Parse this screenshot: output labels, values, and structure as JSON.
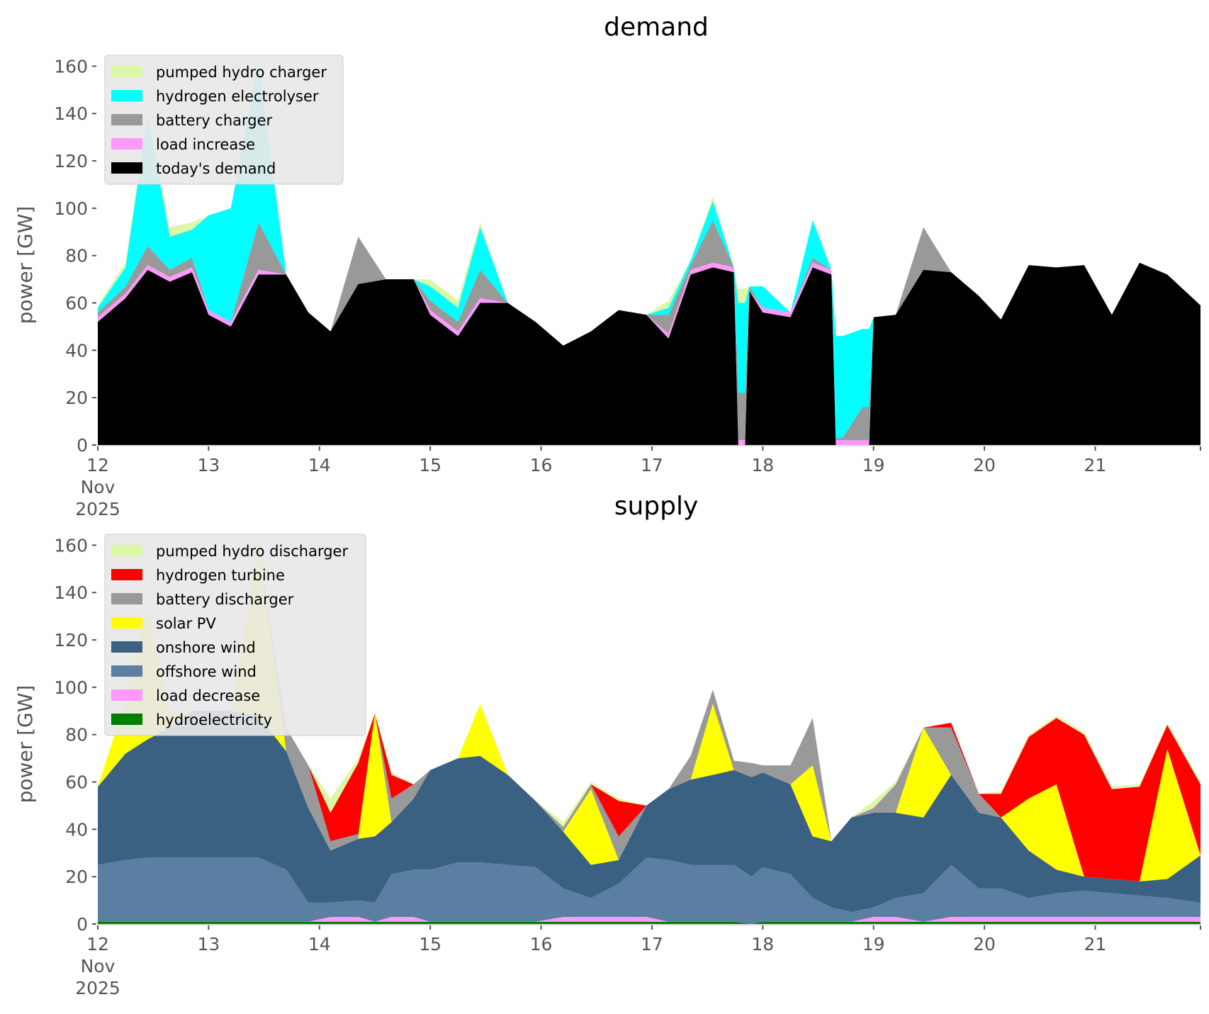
{
  "chart_data": [
    {
      "type": "area",
      "title": "demand",
      "xlabel": "",
      "ylabel": "power [GW]",
      "ylim": [
        0,
        170
      ],
      "xlim": [
        12,
        21.95
      ],
      "x_ticks": [
        {
          "value": 12,
          "label": "12",
          "sub": [
            "Nov",
            "2025"
          ]
        },
        {
          "value": 13,
          "label": "13"
        },
        {
          "value": 14,
          "label": "14"
        },
        {
          "value": 15,
          "label": "15"
        },
        {
          "value": 16,
          "label": "16"
        },
        {
          "value": 17,
          "label": "17"
        },
        {
          "value": 18,
          "label": "18"
        },
        {
          "value": 19,
          "label": "19"
        },
        {
          "value": 20,
          "label": "20"
        },
        {
          "value": 21,
          "label": "21"
        }
      ],
      "y_ticks": [
        0,
        20,
        40,
        60,
        80,
        100,
        120,
        140,
        160
      ],
      "legend_position": "top-left",
      "x": [
        12.0,
        12.25,
        12.45,
        12.65,
        12.85,
        13.0,
        13.2,
        13.45,
        13.7,
        13.9,
        14.1,
        14.35,
        14.6,
        14.85,
        15.0,
        15.25,
        15.45,
        15.7,
        15.95,
        16.2,
        16.45,
        16.7,
        16.95,
        17.15,
        17.35,
        17.55,
        17.74,
        17.78,
        17.84,
        17.88,
        18.0,
        18.25,
        18.45,
        18.62,
        18.66,
        18.72,
        18.9,
        18.96,
        19.0,
        19.2,
        19.45,
        19.7,
        19.95,
        20.15,
        20.4,
        20.65,
        20.9,
        21.15,
        21.4,
        21.65,
        21.95
      ],
      "series": [
        {
          "name": "today's demand",
          "color": "#000000",
          "values": [
            52,
            62,
            74,
            69,
            73,
            55,
            50,
            72,
            72,
            56,
            48,
            68,
            70,
            70,
            55,
            46,
            60,
            60,
            52,
            42,
            48,
            57,
            55,
            45,
            72,
            75,
            73,
            0,
            0,
            65,
            56,
            54,
            75,
            72,
            0,
            0,
            0,
            0,
            54,
            55,
            74,
            73,
            63,
            53,
            76,
            75,
            76,
            55,
            77,
            72,
            59
          ]
        },
        {
          "name": "load increase",
          "color": "#ff99ff",
          "values": [
            2,
            2,
            2,
            2,
            2,
            2,
            2,
            2,
            0,
            0,
            0,
            0,
            0,
            0,
            2,
            2,
            2,
            0,
            0,
            0,
            0,
            0,
            0,
            2,
            2,
            2,
            2,
            2,
            2,
            0,
            2,
            2,
            2,
            2,
            2,
            2,
            2,
            2,
            0,
            0,
            0,
            0,
            0,
            0,
            0,
            0,
            0,
            0,
            0,
            0,
            0
          ]
        },
        {
          "name": "battery charger",
          "color": "#999999",
          "values": [
            2,
            3,
            8,
            3,
            4,
            0,
            0,
            20,
            0,
            0,
            0,
            20,
            0,
            0,
            4,
            4,
            12,
            0,
            0,
            0,
            0,
            0,
            0,
            8,
            2,
            18,
            0,
            20,
            20,
            2,
            0,
            0,
            2,
            0,
            1,
            1,
            14,
            14,
            0,
            0,
            18,
            0,
            0,
            0,
            0,
            0,
            0,
            0,
            0,
            0,
            0
          ]
        },
        {
          "name": "hydrogen electrolyser",
          "color": "#00ffff",
          "values": [
            2,
            8,
            55,
            14,
            12,
            40,
            48,
            68,
            0,
            0,
            0,
            0,
            0,
            0,
            6,
            6,
            18,
            0,
            0,
            0,
            0,
            0,
            0,
            3,
            2,
            8,
            0,
            38,
            38,
            0,
            9,
            0,
            16,
            0,
            43,
            43,
            33,
            33,
            0,
            0,
            0,
            0,
            0,
            0,
            0,
            0,
            0,
            0,
            0,
            0,
            0
          ]
        },
        {
          "name": "pumped hydro charger",
          "color": "#ddf7a6",
          "values": [
            1,
            2,
            2,
            4,
            3,
            0,
            0,
            0,
            0,
            0,
            0,
            0,
            0,
            0,
            3,
            3,
            2,
            0,
            0,
            0,
            0,
            0,
            0,
            3,
            0,
            2,
            0,
            6,
            6,
            0,
            0,
            0,
            0,
            0,
            0,
            0,
            0,
            0,
            0,
            0,
            0,
            0,
            0,
            0,
            0,
            0,
            0,
            0,
            0,
            0,
            0
          ]
        }
      ]
    },
    {
      "type": "area",
      "title": "supply",
      "xlabel": "",
      "ylabel": "power [GW]",
      "ylim": [
        0,
        170
      ],
      "xlim": [
        12,
        21.95
      ],
      "x_ticks": [
        {
          "value": 12,
          "label": "12",
          "sub": [
            "Nov",
            "2025"
          ]
        },
        {
          "value": 13,
          "label": "13"
        },
        {
          "value": 14,
          "label": "14"
        },
        {
          "value": 15,
          "label": "15"
        },
        {
          "value": 16,
          "label": "16"
        },
        {
          "value": 17,
          "label": "17"
        },
        {
          "value": 18,
          "label": "18"
        },
        {
          "value": 19,
          "label": "19"
        },
        {
          "value": 20,
          "label": "20"
        },
        {
          "value": 21,
          "label": "21"
        }
      ],
      "y_ticks": [
        0,
        20,
        40,
        60,
        80,
        100,
        120,
        140,
        160
      ],
      "legend_position": "top-left",
      "x": [
        12.0,
        12.25,
        12.45,
        12.65,
        12.85,
        13.0,
        13.2,
        13.45,
        13.7,
        13.9,
        14.1,
        14.35,
        14.5,
        14.65,
        14.85,
        15.0,
        15.25,
        15.45,
        15.7,
        15.95,
        16.2,
        16.45,
        16.7,
        16.95,
        17.15,
        17.35,
        17.55,
        17.74,
        17.9,
        18.0,
        18.25,
        18.45,
        18.62,
        18.8,
        19.0,
        19.2,
        19.45,
        19.7,
        19.95,
        20.15,
        20.4,
        20.65,
        20.9,
        21.15,
        21.4,
        21.65,
        21.95
      ],
      "series": [
        {
          "name": "hydroelectricity",
          "color": "#008000",
          "values": [
            1,
            1,
            1,
            1,
            1,
            1,
            1,
            1,
            1,
            1,
            1,
            1,
            1,
            1,
            1,
            1,
            1,
            1,
            1,
            1,
            1,
            1,
            1,
            1,
            1,
            1,
            1,
            1,
            0,
            1,
            1,
            1,
            1,
            1,
            1,
            1,
            1,
            1,
            1,
            1,
            1,
            1,
            1,
            1,
            1,
            1,
            1
          ]
        },
        {
          "name": "load decrease",
          "color": "#ff99ff",
          "values": [
            0,
            0,
            0,
            0,
            0,
            0,
            0,
            0,
            0,
            0,
            2,
            2,
            0,
            2,
            2,
            0,
            0,
            0,
            0,
            0,
            2,
            2,
            2,
            2,
            0,
            0,
            0,
            0,
            0,
            0,
            0,
            0,
            0,
            0,
            2,
            2,
            0,
            2,
            2,
            2,
            2,
            2,
            2,
            2,
            2,
            2,
            2
          ]
        },
        {
          "name": "offshore wind",
          "color": "#5b7fa3",
          "values": [
            24,
            26,
            27,
            27,
            27,
            27,
            27,
            27,
            22,
            8,
            6,
            7,
            8,
            18,
            20,
            22,
            25,
            25,
            24,
            23,
            12,
            8,
            14,
            25,
            26,
            24,
            24,
            24,
            20,
            23,
            20,
            10,
            6,
            4,
            4,
            8,
            12,
            22,
            12,
            12,
            8,
            10,
            11,
            10,
            9,
            8,
            6
          ]
        },
        {
          "name": "onshore wind",
          "color": "#3b6182",
          "values": [
            33,
            45,
            50,
            55,
            62,
            62,
            62,
            60,
            50,
            40,
            22,
            26,
            28,
            22,
            30,
            42,
            44,
            45,
            38,
            28,
            24,
            14,
            10,
            22,
            30,
            36,
            38,
            40,
            42,
            40,
            38,
            26,
            28,
            40,
            40,
            36,
            32,
            38,
            32,
            30,
            20,
            10,
            6,
            6,
            6,
            8,
            20
          ]
        },
        {
          "name": "solar PV",
          "color": "#ffff00",
          "values": [
            0,
            22,
            55,
            6,
            0,
            0,
            0,
            72,
            0,
            0,
            0,
            0,
            52,
            0,
            0,
            0,
            0,
            22,
            0,
            0,
            0,
            32,
            0,
            0,
            0,
            0,
            30,
            0,
            0,
            0,
            0,
            30,
            0,
            0,
            0,
            0,
            38,
            0,
            0,
            0,
            22,
            36,
            0,
            0,
            0,
            55,
            0
          ]
        },
        {
          "name": "battery discharger",
          "color": "#999999",
          "values": [
            0,
            0,
            0,
            0,
            0,
            0,
            0,
            0,
            10,
            18,
            4,
            2,
            0,
            10,
            6,
            0,
            0,
            0,
            0,
            0,
            2,
            2,
            10,
            0,
            0,
            10,
            6,
            4,
            6,
            3,
            8,
            20,
            0,
            0,
            2,
            12,
            0,
            20,
            8,
            0,
            0,
            0,
            0,
            0,
            0,
            0,
            0
          ]
        },
        {
          "name": "hydrogen turbine",
          "color": "#ff0000",
          "values": [
            0,
            0,
            0,
            0,
            0,
            0,
            0,
            0,
            0,
            0,
            12,
            30,
            0,
            10,
            0,
            0,
            0,
            0,
            0,
            0,
            0,
            0,
            15,
            0,
            0,
            0,
            0,
            0,
            0,
            0,
            0,
            0,
            0,
            0,
            0,
            0,
            0,
            2,
            0,
            10,
            26,
            28,
            60,
            38,
            40,
            10,
            30
          ]
        },
        {
          "name": "pumped hydro discharger",
          "color": "#ddf7a6",
          "values": [
            0,
            0,
            0,
            0,
            0,
            0,
            0,
            0,
            0,
            0,
            6,
            2,
            0,
            1,
            0,
            0,
            0,
            0,
            0,
            0,
            2,
            1,
            1,
            0,
            0,
            0,
            0,
            0,
            0,
            0,
            0,
            0,
            0,
            0,
            3,
            1,
            0,
            0,
            0,
            1,
            1,
            1,
            1,
            1,
            1,
            1,
            1
          ]
        }
      ]
    }
  ]
}
